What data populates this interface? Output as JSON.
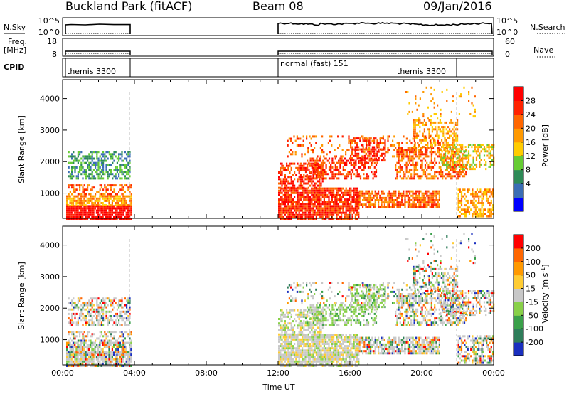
{
  "header": {
    "title": "Buckland Park (fitACF)",
    "beam": "Beam 08",
    "date": "09/Jan/2016"
  },
  "strip_labels": {
    "nsky": "N.Sky",
    "freq_line1": "Freq.",
    "freq_line2": "[MHz]",
    "cpid": "CPID",
    "nsearch": "N.Search",
    "nave": "Nave"
  },
  "strip_ticks": {
    "nsky_left": [
      "10^5",
      "10^0"
    ],
    "nsky_right": [
      "10^5",
      "10^0"
    ],
    "freq_left": [
      "18",
      "8"
    ],
    "nave_right": [
      "60",
      "0"
    ]
  },
  "cpid_labels": [
    "themis 3300",
    "normal (fast) 151",
    "themis 3300"
  ],
  "colorbar_power": {
    "label": "Power [dB]",
    "ticks": [
      "28",
      "24",
      "20",
      "16",
      "12",
      "8",
      "4"
    ],
    "colors": [
      "#0000ff",
      "#3a6db5",
      "#2e8b57",
      "#66cc33",
      "#ffcc00",
      "#ff9900",
      "#ff6600",
      "#ff2200",
      "#ff0000"
    ]
  },
  "colorbar_velocity": {
    "label": "Velocity [m s",
    "label_sup": "-1",
    "label_end": "]",
    "ticks": [
      "200",
      "100",
      "50",
      "15",
      "-15",
      "-50",
      "-100",
      "-200"
    ],
    "colors": [
      "#1a2fbf",
      "#2e7d5a",
      "#3aa04a",
      "#88d048",
      "#c8c8c8",
      "#ffcc33",
      "#ff9900",
      "#ff6600",
      "#ff0000"
    ]
  },
  "chart_data": [
    {
      "type": "heatmap",
      "panel": "power",
      "ylabel": "Slant Range [km]",
      "yticks": [
        1000,
        2000,
        3000,
        4000
      ],
      "ylim": [
        200,
        4600
      ],
      "xlim_hours": [
        0,
        24
      ],
      "colorbar_range": [
        0,
        32
      ],
      "data_gaps_hours": [
        [
          3.8,
          12.0
        ]
      ]
    },
    {
      "type": "heatmap",
      "panel": "velocity",
      "ylabel": "Slant Range [km]",
      "yticks": [
        1000,
        2000,
        3000,
        4000
      ],
      "ylim": [
        200,
        4600
      ],
      "xlim_hours": [
        0,
        24
      ],
      "xticks": [
        "00:00",
        "04:00",
        "08:00",
        "12:00",
        "16:00",
        "20:00",
        "00:00"
      ],
      "xlabel": "Time UT",
      "colorbar_range": [
        -250,
        250
      ],
      "data_gaps_hours": [
        [
          3.8,
          12.0
        ]
      ]
    }
  ]
}
